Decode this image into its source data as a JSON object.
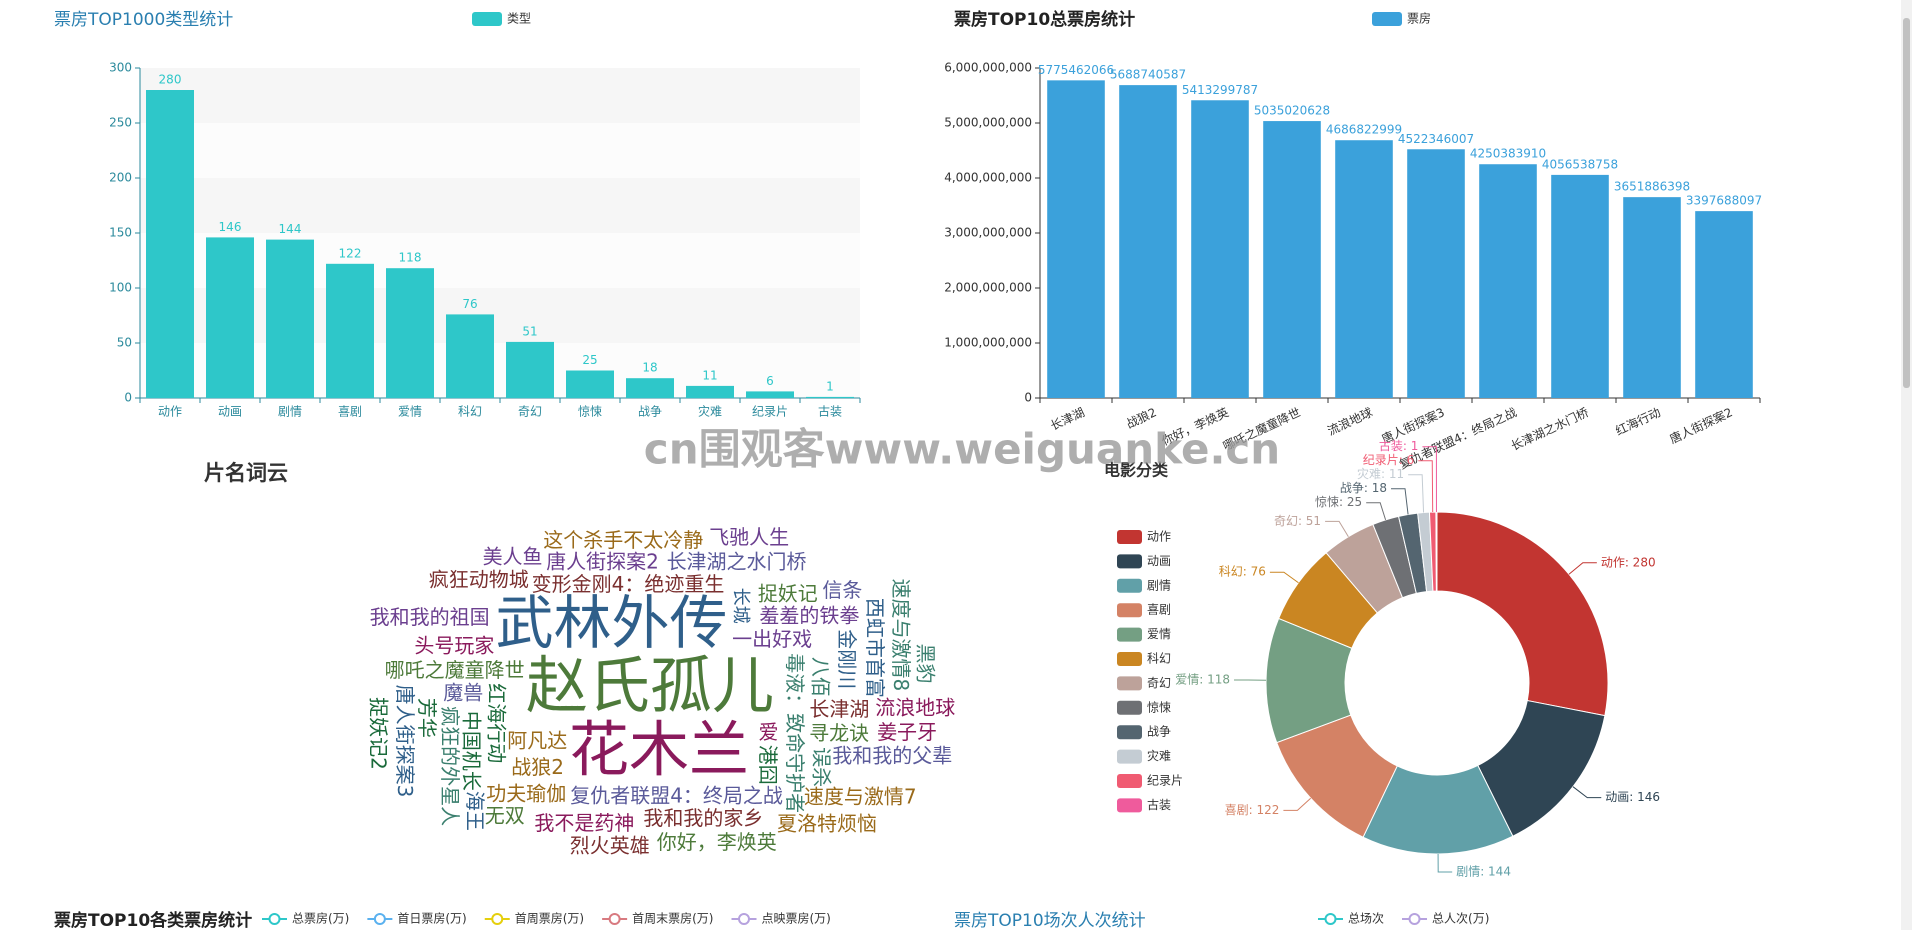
{
  "watermark": "cn围观客www.weiguanke.cn",
  "chart_data": [
    {
      "type": "bar",
      "title": "票房TOP1000类型统计",
      "categories": [
        "动作",
        "动画",
        "剧情",
        "喜剧",
        "爱情",
        "科幻",
        "奇幻",
        "惊悚",
        "战争",
        "灾难",
        "纪录片",
        "古装"
      ],
      "series": [
        {
          "name": "类型",
          "color": "#2ec7c9",
          "values": [
            280,
            146,
            144,
            122,
            118,
            76,
            51,
            25,
            18,
            11,
            6,
            1
          ]
        }
      ],
      "ylim": [
        0,
        300
      ],
      "yticks": [
        0,
        50,
        100,
        150,
        200,
        250,
        300
      ],
      "split_area": true,
      "grid": false
    },
    {
      "type": "bar",
      "title": "票房TOP10总票房统计",
      "categories": [
        "长津湖",
        "战狼2",
        "你好，李焕英",
        "哪吒之魔童降世",
        "流浪地球",
        "唐人街探案3",
        "复仇者联盟4：终局之战",
        "长津湖之水门桥",
        "红海行动",
        "唐人街探案2"
      ],
      "series": [
        {
          "name": "票房",
          "color": "#3ba1db",
          "values": [
            5775462066,
            5688740587,
            5413299787,
            5035020628,
            4686822999,
            4522346007,
            4250383910,
            4056538758,
            3651886398,
            3397688097
          ]
        }
      ],
      "ylim": [
        0,
        6000000000
      ],
      "yticks": [
        0,
        {
          "value": 1000000000,
          "label": "1,000,000,000"
        },
        {
          "value": 2000000000,
          "label": "2,000,000,000"
        },
        {
          "value": 3000000000,
          "label": "3,000,000,000"
        },
        {
          "value": 4000000000,
          "label": "4,000,000,000"
        },
        {
          "value": 5000000000,
          "label": "5,000,000,000"
        },
        {
          "value": 6000000000,
          "label": "6,000,000,000"
        }
      ],
      "split_area": false,
      "grid": false
    },
    {
      "type": "wordcloud",
      "title": "片名词云",
      "colors": [
        "#4d7a3a",
        "#8a1a5c",
        "#2f5f8a",
        "#6b3f8f",
        "#9a6a1a",
        "#3a7f6e",
        "#7a2f2f",
        "#5a5a9a",
        "#1a6a3a"
      ],
      "words": [
        {
          "text": "赵氏孤儿",
          "weight": 62
        },
        {
          "text": "花木兰",
          "weight": 60
        },
        {
          "text": "武林外传",
          "weight": 58
        },
        {
          "text": "一出好戏",
          "weight": 20
        },
        {
          "text": "阿凡达",
          "weight": 20
        },
        {
          "text": "毒液：致命守护者",
          "weight": 20
        },
        {
          "text": "变形金刚4：绝迹重生",
          "weight": 20
        },
        {
          "text": "复仇者联盟4：终局之战",
          "weight": 20
        },
        {
          "text": "红海行动",
          "weight": 20
        },
        {
          "text": "哪吒之魔童降世",
          "weight": 20
        },
        {
          "text": "爱",
          "weight": 20
        },
        {
          "text": "长城",
          "weight": 18
        },
        {
          "text": "羞羞的铁拳",
          "weight": 20
        },
        {
          "text": "战狼2",
          "weight": 20
        },
        {
          "text": "八佰",
          "weight": 20
        },
        {
          "text": "长津湖",
          "weight": 20
        },
        {
          "text": "魔兽",
          "weight": 20
        },
        {
          "text": "中国机长",
          "weight": 20
        },
        {
          "text": "寻龙诀",
          "weight": 20
        },
        {
          "text": "头号玩家",
          "weight": 20
        },
        {
          "text": "西虹市首富",
          "weight": 20
        },
        {
          "text": "唐人街探案2",
          "weight": 20
        },
        {
          "text": "功夫瑜伽",
          "weight": 20
        },
        {
          "text": "疯狂的外星人",
          "weight": 20
        },
        {
          "text": "我和我的家乡",
          "weight": 20
        },
        {
          "text": "长津湖之水门桥",
          "weight": 20
        },
        {
          "text": "港囧",
          "weight": 20
        },
        {
          "text": "捉妖记",
          "weight": 20
        },
        {
          "text": "我不是药神",
          "weight": 20
        },
        {
          "text": "金刚川",
          "weight": 20
        },
        {
          "text": "我和我的祖国",
          "weight": 20
        },
        {
          "text": "这个杀手不太冷静",
          "weight": 20
        },
        {
          "text": "误杀",
          "weight": 20
        },
        {
          "text": "疯狂动物城",
          "weight": 20
        },
        {
          "text": "我和我的父辈",
          "weight": 20
        },
        {
          "text": "芳华",
          "weight": 20
        },
        {
          "text": "你好，李焕英",
          "weight": 20
        },
        {
          "text": "流浪地球",
          "weight": 20
        },
        {
          "text": "唐人街探案3",
          "weight": 20
        },
        {
          "text": "美人鱼",
          "weight": 20
        },
        {
          "text": "速度与激情7",
          "weight": 20
        },
        {
          "text": "速度与激情8",
          "weight": 20
        },
        {
          "text": "烈火英雄",
          "weight": 20
        },
        {
          "text": "信条",
          "weight": 20
        },
        {
          "text": "捉妖记2",
          "weight": 20
        },
        {
          "text": "无双",
          "weight": 20
        },
        {
          "text": "姜子牙",
          "weight": 20
        },
        {
          "text": "海王",
          "weight": 20
        },
        {
          "text": "飞驰人生",
          "weight": 20
        },
        {
          "text": "夏洛特烦恼",
          "weight": 20
        },
        {
          "text": "黑豹",
          "weight": 20
        }
      ]
    },
    {
      "type": "pie",
      "title": "电影分类",
      "categories": [
        "动作",
        "动画",
        "剧情",
        "喜剧",
        "爱情",
        "科幻",
        "奇幻",
        "惊悚",
        "战争",
        "灾难",
        "纪录片",
        "古装"
      ],
      "values": [
        280,
        146,
        144,
        122,
        118,
        76,
        51,
        25,
        18,
        11,
        6,
        1
      ],
      "value_labels": [
        "动作: 280",
        "动画: 146",
        "剧情: 144",
        "喜剧: 122",
        "爱情: 118",
        "科幻: 76",
        "奇幻: 51",
        "惊悚: 25",
        "战争: 18",
        "灾难: 11",
        "纪录片: 6",
        "古装: 1"
      ],
      "colors": [
        "#c23531",
        "#2f4554",
        "#61a0a8",
        "#d48265",
        "#749f83",
        "#ca8622",
        "#bda29a",
        "#6e7074",
        "#546570",
        "#c4ccd3",
        "#f05b72",
        "#ef5b9c"
      ]
    },
    {
      "type": "line",
      "title": "票房TOP10各类票房统计",
      "series": [
        {
          "name": "总票房(万)",
          "color": "#2ec7c9"
        },
        {
          "name": "首日票房(万)",
          "color": "#5ab1ef"
        },
        {
          "name": "首周票房(万)",
          "color": "#e5cf0d"
        },
        {
          "name": "首周末票房(万)",
          "color": "#d87a80"
        },
        {
          "name": "点映票房(万)",
          "color": "#b6a2de"
        }
      ]
    },
    {
      "type": "line",
      "title": "票房TOP10场次人次统计",
      "series": [
        {
          "name": "总场次",
          "color": "#2ec7c9"
        },
        {
          "name": "总人次(万)",
          "color": "#b6a2de"
        }
      ]
    }
  ]
}
